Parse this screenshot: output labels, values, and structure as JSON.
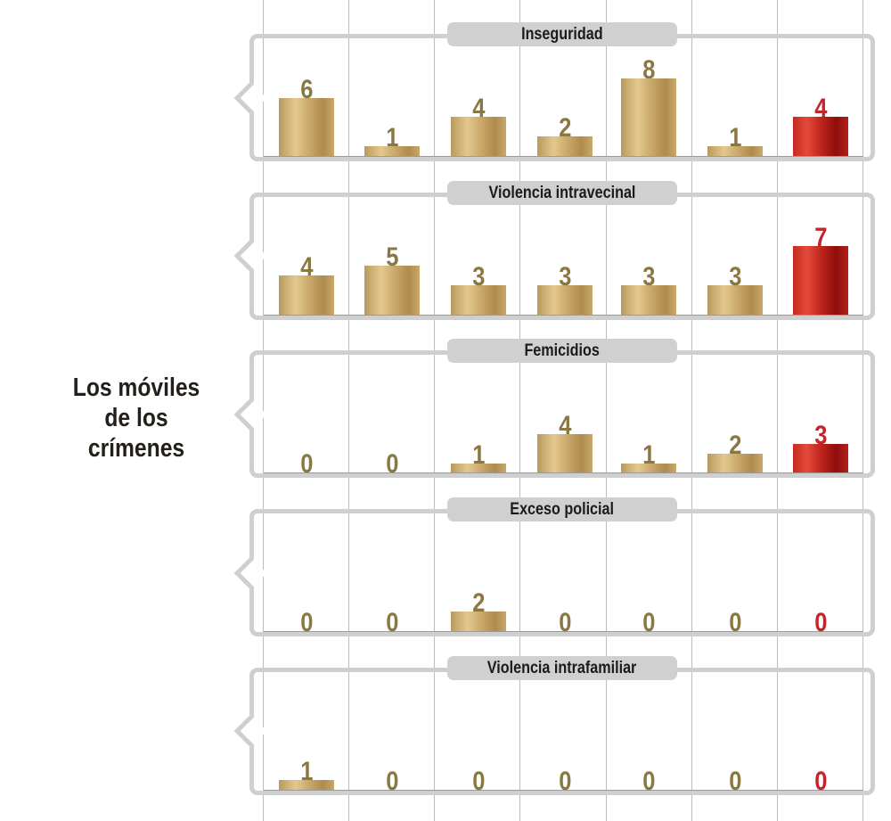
{
  "title": "Los móviles de los crímenes",
  "colors": {
    "gold_bar": "#c9a86a",
    "gold_label": "#8a7843",
    "red_bar": "#c42a20",
    "red_label": "#c3262a",
    "frame": "#cfcfcf",
    "pill": "#d0d0d0"
  },
  "chart_data": [
    {
      "type": "bar",
      "title": "Inseguridad",
      "values": [
        6,
        1,
        4,
        2,
        8,
        1,
        4
      ],
      "highlight_last": true
    },
    {
      "type": "bar",
      "title": "Violencia intravecinal",
      "values": [
        4,
        5,
        3,
        3,
        3,
        3,
        7
      ],
      "highlight_last": true
    },
    {
      "type": "bar",
      "title": "Femicidios",
      "values": [
        0,
        0,
        1,
        4,
        1,
        2,
        3
      ],
      "highlight_last": true
    },
    {
      "type": "bar",
      "title": "Exceso policial",
      "values": [
        0,
        0,
        2,
        0,
        0,
        0,
        0
      ],
      "highlight_last": true
    },
    {
      "type": "bar",
      "title": "Violencia intrafamiliar",
      "values": [
        1,
        0,
        0,
        0,
        0,
        0,
        0
      ],
      "highlight_last": true
    }
  ]
}
